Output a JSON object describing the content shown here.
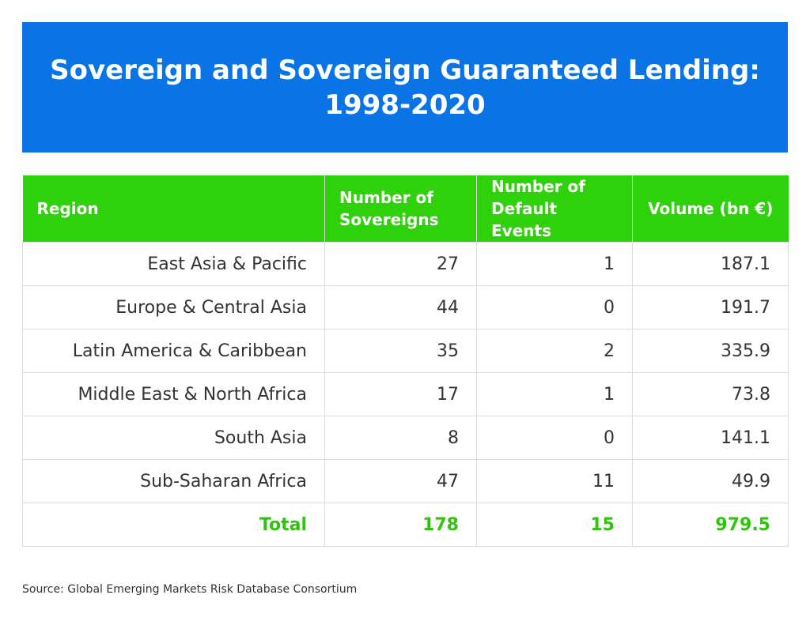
{
  "title": "Sovereign and Sovereign Guaranteed Lending: 1998-2020",
  "colors": {
    "banner": "#0a73e6",
    "header": "#2fd10b",
    "total_text": "#2fc40b"
  },
  "chart_data": {
    "type": "table",
    "columns": [
      "Region",
      "Number of\nSovereigns",
      "Number of\nDefault Events",
      "Volume (bn €)"
    ],
    "rows": [
      [
        "East Asia & Pacific",
        "27",
        "1",
        "187.1"
      ],
      [
        "Europe & Central Asia",
        "44",
        "0",
        "191.7"
      ],
      [
        "Latin America & Caribbean",
        "35",
        "2",
        "335.9"
      ],
      [
        "Middle East & North Africa",
        "17",
        "1",
        "73.8"
      ],
      [
        "South Asia",
        "8",
        "0",
        "141.1"
      ],
      [
        "Sub-Saharan Africa",
        "47",
        "11",
        "49.9"
      ]
    ],
    "total": [
      "Total",
      "178",
      "15",
      "979.5"
    ]
  },
  "source": "Source: Global Emerging Markets Risk Database Consortium"
}
